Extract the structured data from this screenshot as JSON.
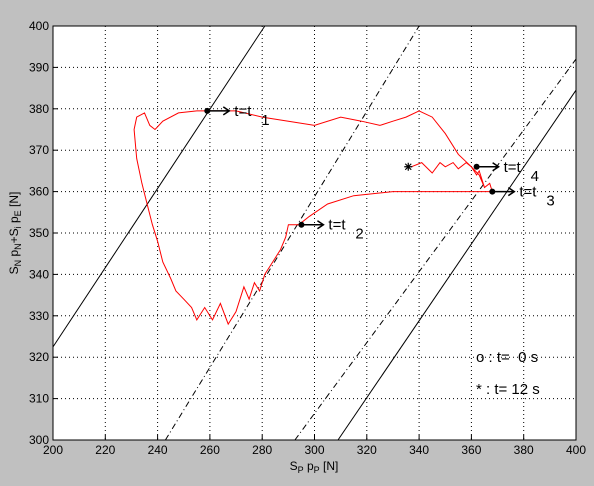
{
  "chart_data": {
    "type": "line",
    "xlabel": [
      "S",
      "P",
      " p",
      "P",
      " [N]"
    ],
    "ylabel": [
      "S",
      "N",
      " p",
      "N",
      "+S",
      "i",
      " p",
      "E",
      " [N]"
    ],
    "xlim": [
      200,
      400
    ],
    "ylim": [
      300,
      400
    ],
    "xticks": [
      200,
      220,
      240,
      260,
      280,
      300,
      320,
      340,
      360,
      380,
      400
    ],
    "yticks": [
      300,
      310,
      320,
      330,
      340,
      350,
      360,
      370,
      380,
      390,
      400
    ],
    "grid": true,
    "series": [
      {
        "color": "#000000",
        "style": "solid",
        "x": [
          200,
          281
        ],
        "y": [
          322.5,
          400
        ]
      },
      {
        "color": "#000000",
        "style": "dashdot",
        "x": [
          243,
          340
        ],
        "y": [
          300,
          400
        ]
      },
      {
        "color": "#000000",
        "style": "dashdot",
        "x": [
          292.5,
          400
        ],
        "y": [
          300,
          392
        ]
      },
      {
        "color": "#000000",
        "style": "solid",
        "x": [
          309,
          400
        ],
        "y": [
          300,
          384.5
        ]
      },
      {
        "color": "#ff0000",
        "style": "solid",
        "x": [
          337,
          341,
          345,
          348,
          350,
          353,
          355,
          358,
          360,
          362,
          363,
          365,
          367,
          368,
          350,
          330,
          315,
          305,
          298,
          294,
          290,
          289,
          287,
          284,
          281,
          279,
          277,
          275,
          273,
          270,
          267,
          264,
          261,
          258,
          255,
          253,
          250,
          247,
          245,
          242,
          240,
          238,
          236,
          234,
          232,
          231,
          232,
          235,
          237,
          239,
          242,
          248,
          255,
          260,
          270,
          280,
          290,
          300,
          310,
          318,
          325,
          330,
          335,
          340,
          345,
          350,
          355,
          360,
          363,
          365
        ],
        "y": [
          366,
          367,
          364.5,
          367,
          366,
          367,
          365.5,
          367,
          366,
          364,
          365,
          361,
          362,
          360,
          360,
          360,
          359,
          357,
          354,
          352,
          352,
          349,
          346,
          343,
          340,
          336,
          338,
          334,
          337,
          331,
          328,
          333,
          329,
          332,
          329,
          332,
          334,
          336,
          339,
          343,
          348,
          352,
          357,
          362,
          368,
          375,
          378,
          379,
          376,
          375,
          377,
          379,
          379.5,
          379.5,
          379.5,
          378,
          377,
          376,
          378,
          377,
          376,
          377,
          378,
          379.5,
          378,
          374,
          369,
          366,
          364,
          361
        ]
      }
    ],
    "markers": {
      "x": [
        259,
        295,
        368,
        362
      ],
      "y": [
        379.5,
        352,
        360,
        366
      ],
      "labels": [
        "t=t",
        "t=t",
        "t=t",
        "t=t"
      ],
      "subscripts": [
        "1",
        "2",
        "3",
        "4"
      ]
    },
    "notes": [
      "o : t=  0 s",
      "* : t= 12 s"
    ]
  }
}
